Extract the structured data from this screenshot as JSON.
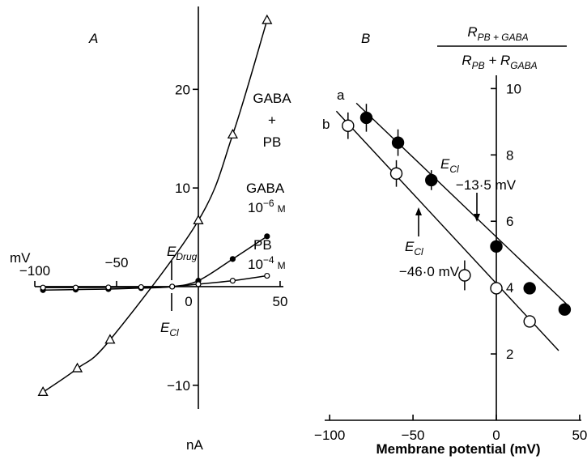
{
  "chart_data": [
    {
      "type": "line",
      "title": "A",
      "x_label": "mV",
      "y_label": "nA",
      "xlim": [
        -100,
        52
      ],
      "ylim": [
        -12.4,
        28.4
      ],
      "xticks": [
        {
          "value": -100,
          "label": "−100"
        },
        {
          "value": -50,
          "label": "−50"
        },
        0,
        50
      ],
      "yticks": [
        {
          "value": -10,
          "label": "−10"
        },
        10,
        20
      ],
      "annotations": {
        "e_drug": {
          "symbol": "E",
          "subscript": "Drug"
        },
        "e_cl": {
          "symbol": "E",
          "subscript": "Cl"
        }
      },
      "series": [
        {
          "name_lines": [
            "GABA",
            "+",
            "PB"
          ],
          "marker": "triangle",
          "color": "#000000",
          "x": [
            -95,
            -74,
            -54,
            0,
            21,
            42
          ],
          "values": [
            -10.7,
            -8.3,
            -5.4,
            6.7,
            15.4,
            27
          ]
        },
        {
          "name": "GABA",
          "concentration": {
            "base": "10",
            "exponent": "−6",
            "unit": "M"
          },
          "marker": "dot",
          "color": "#000000",
          "x": [
            -95,
            -75,
            -55,
            -35,
            -16,
            0,
            21,
            42
          ],
          "values": [
            -0.35,
            -0.3,
            -0.25,
            -0.15,
            0,
            0.6,
            2.8,
            5.1
          ]
        },
        {
          "name": "PB",
          "concentration": {
            "base": "10",
            "exponent": "−4",
            "unit": "M"
          },
          "marker": "circle",
          "color": "#000000",
          "x": [
            -95,
            -75,
            -55,
            -35,
            -16,
            0,
            21,
            42
          ],
          "values": [
            -0.1,
            -0.1,
            -0.08,
            -0.05,
            0,
            0.25,
            0.6,
            1.1
          ]
        }
      ]
    },
    {
      "type": "scatter",
      "title": "B",
      "x_label": "Membrane potential (mV)",
      "y_label": {
        "numerator": {
          "symbol": "R",
          "subscript": "PB + GABA"
        },
        "denominator": [
          {
            "symbol": "R",
            "subscript": "PB"
          },
          {
            "symbol": " + R",
            "subscript": "GABA"
          }
        ]
      },
      "xlim": [
        -103,
        51
      ],
      "ylim": [
        0,
        10.4
      ],
      "xticks": [
        {
          "value": -100,
          "label": "−100"
        },
        {
          "value": -50,
          "label": "−50"
        },
        0,
        50
      ],
      "yticks": [
        2,
        4,
        6,
        8,
        10
      ],
      "annotations": {
        "e_cl_a": {
          "symbol": "E",
          "subscript": "Cl",
          "text": "−13·5 mV"
        },
        "e_cl_b": {
          "symbol": "E",
          "subscript": "Cl",
          "text": "−46·0 mV"
        }
      },
      "series": [
        {
          "name": "a",
          "marker": "filled",
          "color": "#000000",
          "x": [
            -78,
            -59,
            -39,
            0,
            20,
            41
          ],
          "values": [
            9.12,
            8.37,
            7.24,
            5.24,
            3.98,
            3.34
          ],
          "errors": [
            0.42,
            0.4,
            0.3,
            0.2,
            0.1,
            0.1
          ],
          "fit": {
            "x": [
              -84,
              42
            ],
            "y": [
              9.56,
              3.51
            ]
          }
        },
        {
          "name": "b",
          "marker": "open",
          "color": "#000000",
          "x": [
            -89,
            -60,
            -19,
            0,
            20
          ],
          "values": [
            8.88,
            7.44,
            4.37,
            3.98,
            2.98
          ],
          "errors": [
            0.4,
            0.4,
            0.45,
            0.1,
            0.1
          ],
          "fit": {
            "x": [
              -96,
              37.4
            ],
            "y": [
              9.32,
              2.1
            ]
          }
        }
      ]
    }
  ]
}
